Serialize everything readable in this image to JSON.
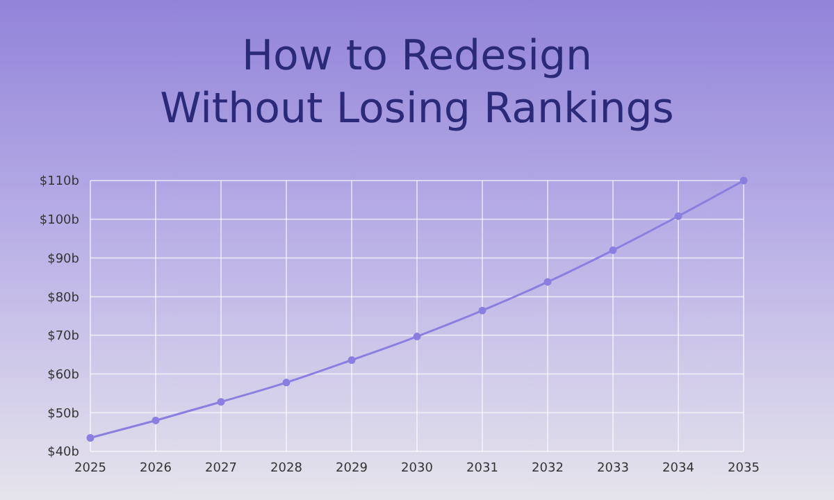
{
  "chart_data": {
    "type": "line",
    "title": "How to Redesign\nWithout Losing Rankings",
    "x": [
      2025,
      2026,
      2027,
      2028,
      2029,
      2030,
      2031,
      2032,
      2033,
      2034,
      2035
    ],
    "series": [
      {
        "color": "#8a7fe0",
        "values": [
          43.5,
          48,
          52.8,
          57.8,
          63.6,
          69.7,
          76.4,
          83.8,
          92,
          100.8,
          110
        ]
      }
    ],
    "xlim": [
      2025,
      2035
    ],
    "xticks": [
      2025,
      2026,
      2027,
      2028,
      2029,
      2030,
      2031,
      2032,
      2033,
      2034,
      2035
    ],
    "ylim": [
      40,
      110
    ],
    "yticks": [
      {
        "value": 40,
        "label": "$40b"
      },
      {
        "value": 50,
        "label": "$50b"
      },
      {
        "value": 60,
        "label": "$60b"
      },
      {
        "value": 70,
        "label": "$70b"
      },
      {
        "value": 80,
        "label": "$80b"
      },
      {
        "value": 90,
        "label": "$90b"
      },
      {
        "value": 100,
        "label": "$100b"
      },
      {
        "value": 110,
        "label": "$110b"
      }
    ],
    "grid": true,
    "marker": "circle",
    "line_style": "solid",
    "legend": false
  }
}
